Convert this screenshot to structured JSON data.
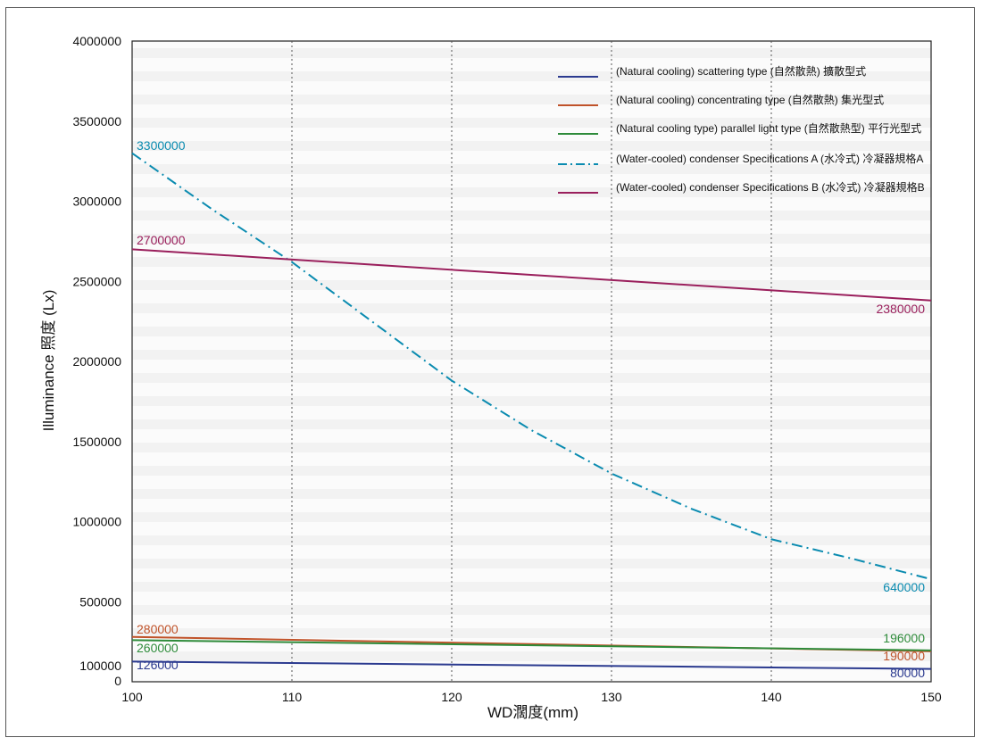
{
  "chart_data": {
    "type": "line",
    "xlabel": "WD濶度(mm)",
    "ylabel": "Illuminance 照度 (Lx)",
    "xlim": [
      100,
      150
    ],
    "ylim": [
      0,
      4000000
    ],
    "x_ticks": [
      "100",
      "110",
      "120",
      "130",
      "140",
      "150"
    ],
    "y_ticks": [
      "0",
      "100000",
      "500000",
      "1000000",
      "1500000",
      "2000000",
      "2500000",
      "3000000",
      "3500000",
      "4000000"
    ],
    "grid": "vertical dotted lines",
    "legend_position": "top-right",
    "series": [
      {
        "name": "(Natural cooling) scattering type (自然散熱) 擴散型式",
        "color": "#2b3a8f",
        "dash": "solid",
        "x": [
          100,
          150
        ],
        "values": [
          126000,
          80000
        ],
        "start_label": "126000",
        "end_label": "80000"
      },
      {
        "name": "(Natural cooling) concentrating type (自然散熱) 集光型式",
        "color": "#c0532a",
        "dash": "solid",
        "x": [
          100,
          150
        ],
        "values": [
          280000,
          190000
        ],
        "start_label": "280000",
        "end_label": "190000"
      },
      {
        "name": "(Natural cooling type) parallel light type (自然散熱型) 平行光型式",
        "color": "#2e8b3a",
        "dash": "solid",
        "x": [
          100,
          150
        ],
        "values": [
          260000,
          196000
        ],
        "start_label": "260000",
        "end_label": "196000"
      },
      {
        "name": "(Water-cooled) condenser Specifications A (水冷式) 冷凝器規格A",
        "color": "#0a8bb0",
        "dash": "dashdot",
        "x": [
          100,
          105,
          110,
          115,
          120,
          125,
          130,
          135,
          140,
          145,
          150
        ],
        "values": [
          3300000,
          2950000,
          2620000,
          2250000,
          1880000,
          1570000,
          1300000,
          1080000,
          890000,
          770000,
          640000
        ],
        "start_label": "3300000",
        "end_label": "640000"
      },
      {
        "name": "(Water-cooled) condenser Specifications B (水冷式) 冷凝器規格B",
        "color": "#9a1f5c",
        "dash": "solid",
        "x": [
          100,
          150
        ],
        "values": [
          2700000,
          2380000
        ],
        "start_label": "2700000",
        "end_label": "2380000"
      }
    ]
  }
}
